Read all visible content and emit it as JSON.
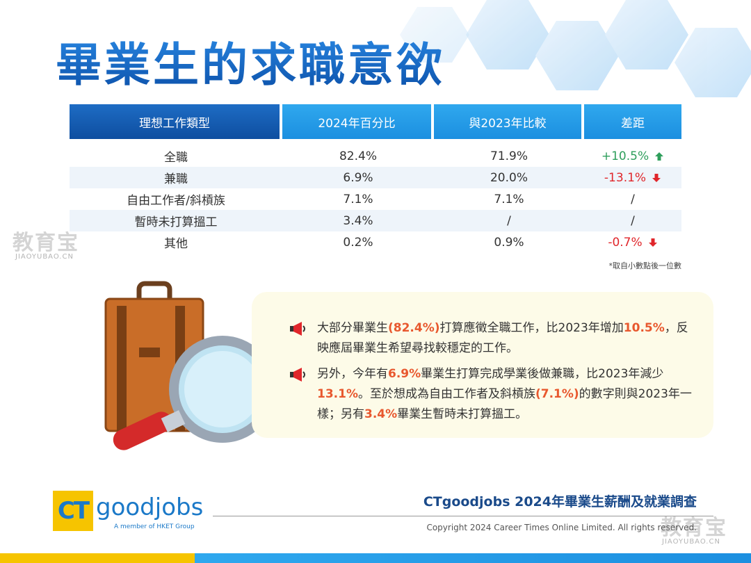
{
  "title": "畢業生的求職意欲",
  "table": {
    "headers": [
      "理想工作類型",
      "2024年百分比",
      "與2023年比較",
      "差距"
    ],
    "rows": [
      {
        "type": "全職",
        "pct2024": "82.4%",
        "pct2023": "71.9%",
        "diff": "+10.5%",
        "trend": "up"
      },
      {
        "type": "兼職",
        "pct2024": "6.9%",
        "pct2023": "20.0%",
        "diff": "-13.1%",
        "trend": "down"
      },
      {
        "type": "自由工作者/斜槓族",
        "pct2024": "7.1%",
        "pct2023": "7.1%",
        "diff": "/",
        "trend": "none"
      },
      {
        "type": "暫時未打算搵工",
        "pct2024": "3.4%",
        "pct2023": "/",
        "diff": "/",
        "trend": "none"
      },
      {
        "type": "其他",
        "pct2024": "0.2%",
        "pct2023": "0.9%",
        "diff": "-0.7%",
        "trend": "down"
      }
    ],
    "note": "*取自小數點後一位數"
  },
  "info": {
    "p1": {
      "a": "大部分畢業生",
      "b": "(82.4%)",
      "c": "打算應徵全職工作，比2023年增加",
      "d": "10.5%",
      "e": "，反映應屆畢業生希望尋找較穩定的工作。"
    },
    "p2": {
      "a": "另外，今年有",
      "b": "6.9%",
      "c": "畢業生打算完成學業後做兼職，比2023年減少",
      "d": "13.1%",
      "e": "。至於想成為自由工作者及斜槓族",
      "f": "(7.1%)",
      "g": "的數字則與2023年一樣；另有",
      "h": "3.4%",
      "i": "畢業生暫時未打算搵工。"
    }
  },
  "footer": {
    "survey_title": "CTgoodjobs 2024年畢業生薪酬及就業調查",
    "copyright": "Copyright 2024 Career Times Online Limited. All rights reserved.",
    "logo_ct": "CT",
    "logo_text": "goodjobs",
    "logo_sub": "A member of HKET Group"
  },
  "watermark": {
    "text": "教育宝",
    "sub": "JIAOYUBAO.CN"
  },
  "colors": {
    "brand_blue": "#1565c0",
    "header_blue": "#1c8fe0",
    "up": "#2e9e5b",
    "down": "#e0262b",
    "highlight": "#e8582e",
    "logo_yellow": "#f6c400"
  },
  "icons": {
    "megaphone": "megaphone-icon",
    "up": "arrow-up-icon",
    "down": "arrow-down-icon"
  }
}
